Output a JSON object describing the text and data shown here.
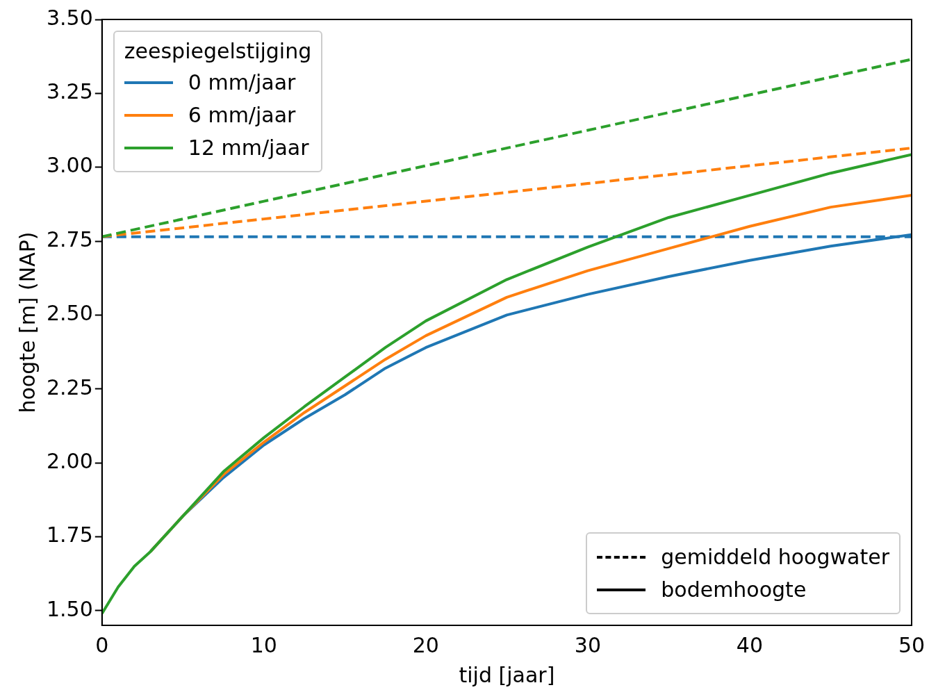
{
  "chart_data": {
    "type": "line",
    "xlabel": "tijd [jaar]",
    "ylabel": "hoogte [m] (NAP)",
    "legend_title": "zeespiegelstijging",
    "legend": "top left",
    "grid": false,
    "marker": "none",
    "xlim": [
      0,
      50
    ],
    "xticks": [
      0,
      10,
      20,
      30,
      40,
      50
    ],
    "ylim": [
      1.45,
      3.5
    ],
    "yticks": [
      {
        "value": 1.5,
        "label": "1.50"
      },
      {
        "value": 1.75,
        "label": "1.75"
      },
      {
        "value": 2,
        "label": "2.00"
      },
      {
        "value": 2.25,
        "label": "2.25"
      },
      {
        "value": 2.5,
        "label": "2.50"
      },
      {
        "value": 2.75,
        "label": "2.75"
      },
      {
        "value": 3,
        "label": "3.00"
      },
      {
        "value": 3.25,
        "label": "3.25"
      },
      {
        "value": 3.5,
        "label": "3.50"
      }
    ],
    "x": [
      0,
      1,
      2,
      3,
      5,
      7.5,
      10,
      12.5,
      15,
      17.5,
      20,
      25,
      30,
      35,
      40,
      45,
      50
    ],
    "series": [
      {
        "color": "#1f77b4",
        "line_style": "dashed",
        "x": [
          0,
          10,
          20,
          30,
          40,
          50
        ],
        "values": [
          2.765,
          2.765,
          2.765,
          2.765,
          2.765,
          2.765
        ]
      },
      {
        "color": "#ff7f0e",
        "line_style": "dashed",
        "x": [
          0,
          10,
          20,
          30,
          40,
          50
        ],
        "values": [
          2.765,
          2.825,
          2.885,
          2.945,
          3.005,
          3.065
        ]
      },
      {
        "color": "#2ca02c",
        "line_style": "dashed",
        "x": [
          0,
          10,
          20,
          30,
          40,
          50
        ],
        "values": [
          2.765,
          2.885,
          3.005,
          3.125,
          3.245,
          3.365
        ]
      },
      {
        "name": "0 mm/jaar",
        "color": "#1f77b4",
        "line_style": "solid",
        "values": [
          null,
          null,
          null,
          1.7,
          1.82,
          1.95,
          2.06,
          2.15,
          2.23,
          2.32,
          2.39,
          2.5,
          2.57,
          2.63,
          2.685,
          2.733,
          2.772
        ]
      },
      {
        "name": "6 mm/jaar",
        "color": "#ff7f0e",
        "line_style": "solid",
        "values": [
          null,
          null,
          null,
          1.7,
          1.82,
          1.96,
          2.07,
          2.17,
          2.26,
          2.35,
          2.43,
          2.56,
          2.65,
          2.725,
          2.8,
          2.865,
          2.905
        ]
      },
      {
        "name": "12 mm/jaar",
        "color": "#2ca02c",
        "line_style": "solid",
        "values": [
          1.49,
          1.58,
          1.65,
          1.7,
          1.82,
          1.97,
          2.085,
          2.19,
          2.29,
          2.39,
          2.48,
          2.62,
          2.73,
          2.83,
          2.905,
          2.98,
          3.043
        ]
      }
    ],
    "annotations": [
      "gemiddeld hoogwater",
      "bodemhoogte"
    ]
  }
}
